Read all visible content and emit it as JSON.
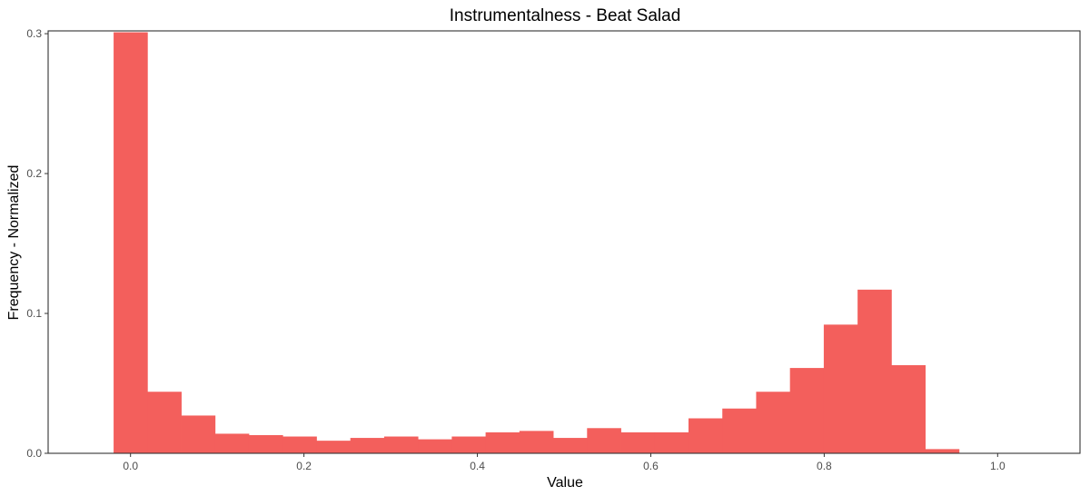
{
  "chart_data": {
    "type": "bar",
    "title": "Instrumentalness - Beat Salad",
    "xlabel": "Value",
    "ylabel": "Frequency - Normalized",
    "xlim": [
      -0.095,
      1.095
    ],
    "ylim": [
      0,
      0.302
    ],
    "bin_width": 0.039,
    "x_ticks": [
      0.0,
      0.2,
      0.4,
      0.6,
      0.8,
      1.0
    ],
    "x_tick_labels": [
      "0.0",
      "0.2",
      "0.4",
      "0.6",
      "0.8",
      "1.0"
    ],
    "y_ticks": [
      0.0,
      0.1,
      0.2,
      0.3
    ],
    "y_tick_labels": [
      "0.0",
      "0.1",
      "0.2",
      "0.3"
    ],
    "bar_color": "#f35f5c",
    "grid": false,
    "legend": "none",
    "bins": [
      {
        "x": 0.0,
        "value": 0.301
      },
      {
        "x": 0.039,
        "value": 0.044
      },
      {
        "x": 0.078,
        "value": 0.027
      },
      {
        "x": 0.117,
        "value": 0.014
      },
      {
        "x": 0.156,
        "value": 0.013
      },
      {
        "x": 0.195,
        "value": 0.012
      },
      {
        "x": 0.234,
        "value": 0.009
      },
      {
        "x": 0.273,
        "value": 0.011
      },
      {
        "x": 0.312,
        "value": 0.012
      },
      {
        "x": 0.351,
        "value": 0.01
      },
      {
        "x": 0.39,
        "value": 0.012
      },
      {
        "x": 0.429,
        "value": 0.015
      },
      {
        "x": 0.468,
        "value": 0.016
      },
      {
        "x": 0.507,
        "value": 0.011
      },
      {
        "x": 0.546,
        "value": 0.018
      },
      {
        "x": 0.585,
        "value": 0.015
      },
      {
        "x": 0.624,
        "value": 0.015
      },
      {
        "x": 0.663,
        "value": 0.025
      },
      {
        "x": 0.702,
        "value": 0.032
      },
      {
        "x": 0.741,
        "value": 0.044
      },
      {
        "x": 0.78,
        "value": 0.061
      },
      {
        "x": 0.819,
        "value": 0.092
      },
      {
        "x": 0.858,
        "value": 0.117
      },
      {
        "x": 0.897,
        "value": 0.063
      },
      {
        "x": 0.936,
        "value": 0.003
      }
    ]
  }
}
